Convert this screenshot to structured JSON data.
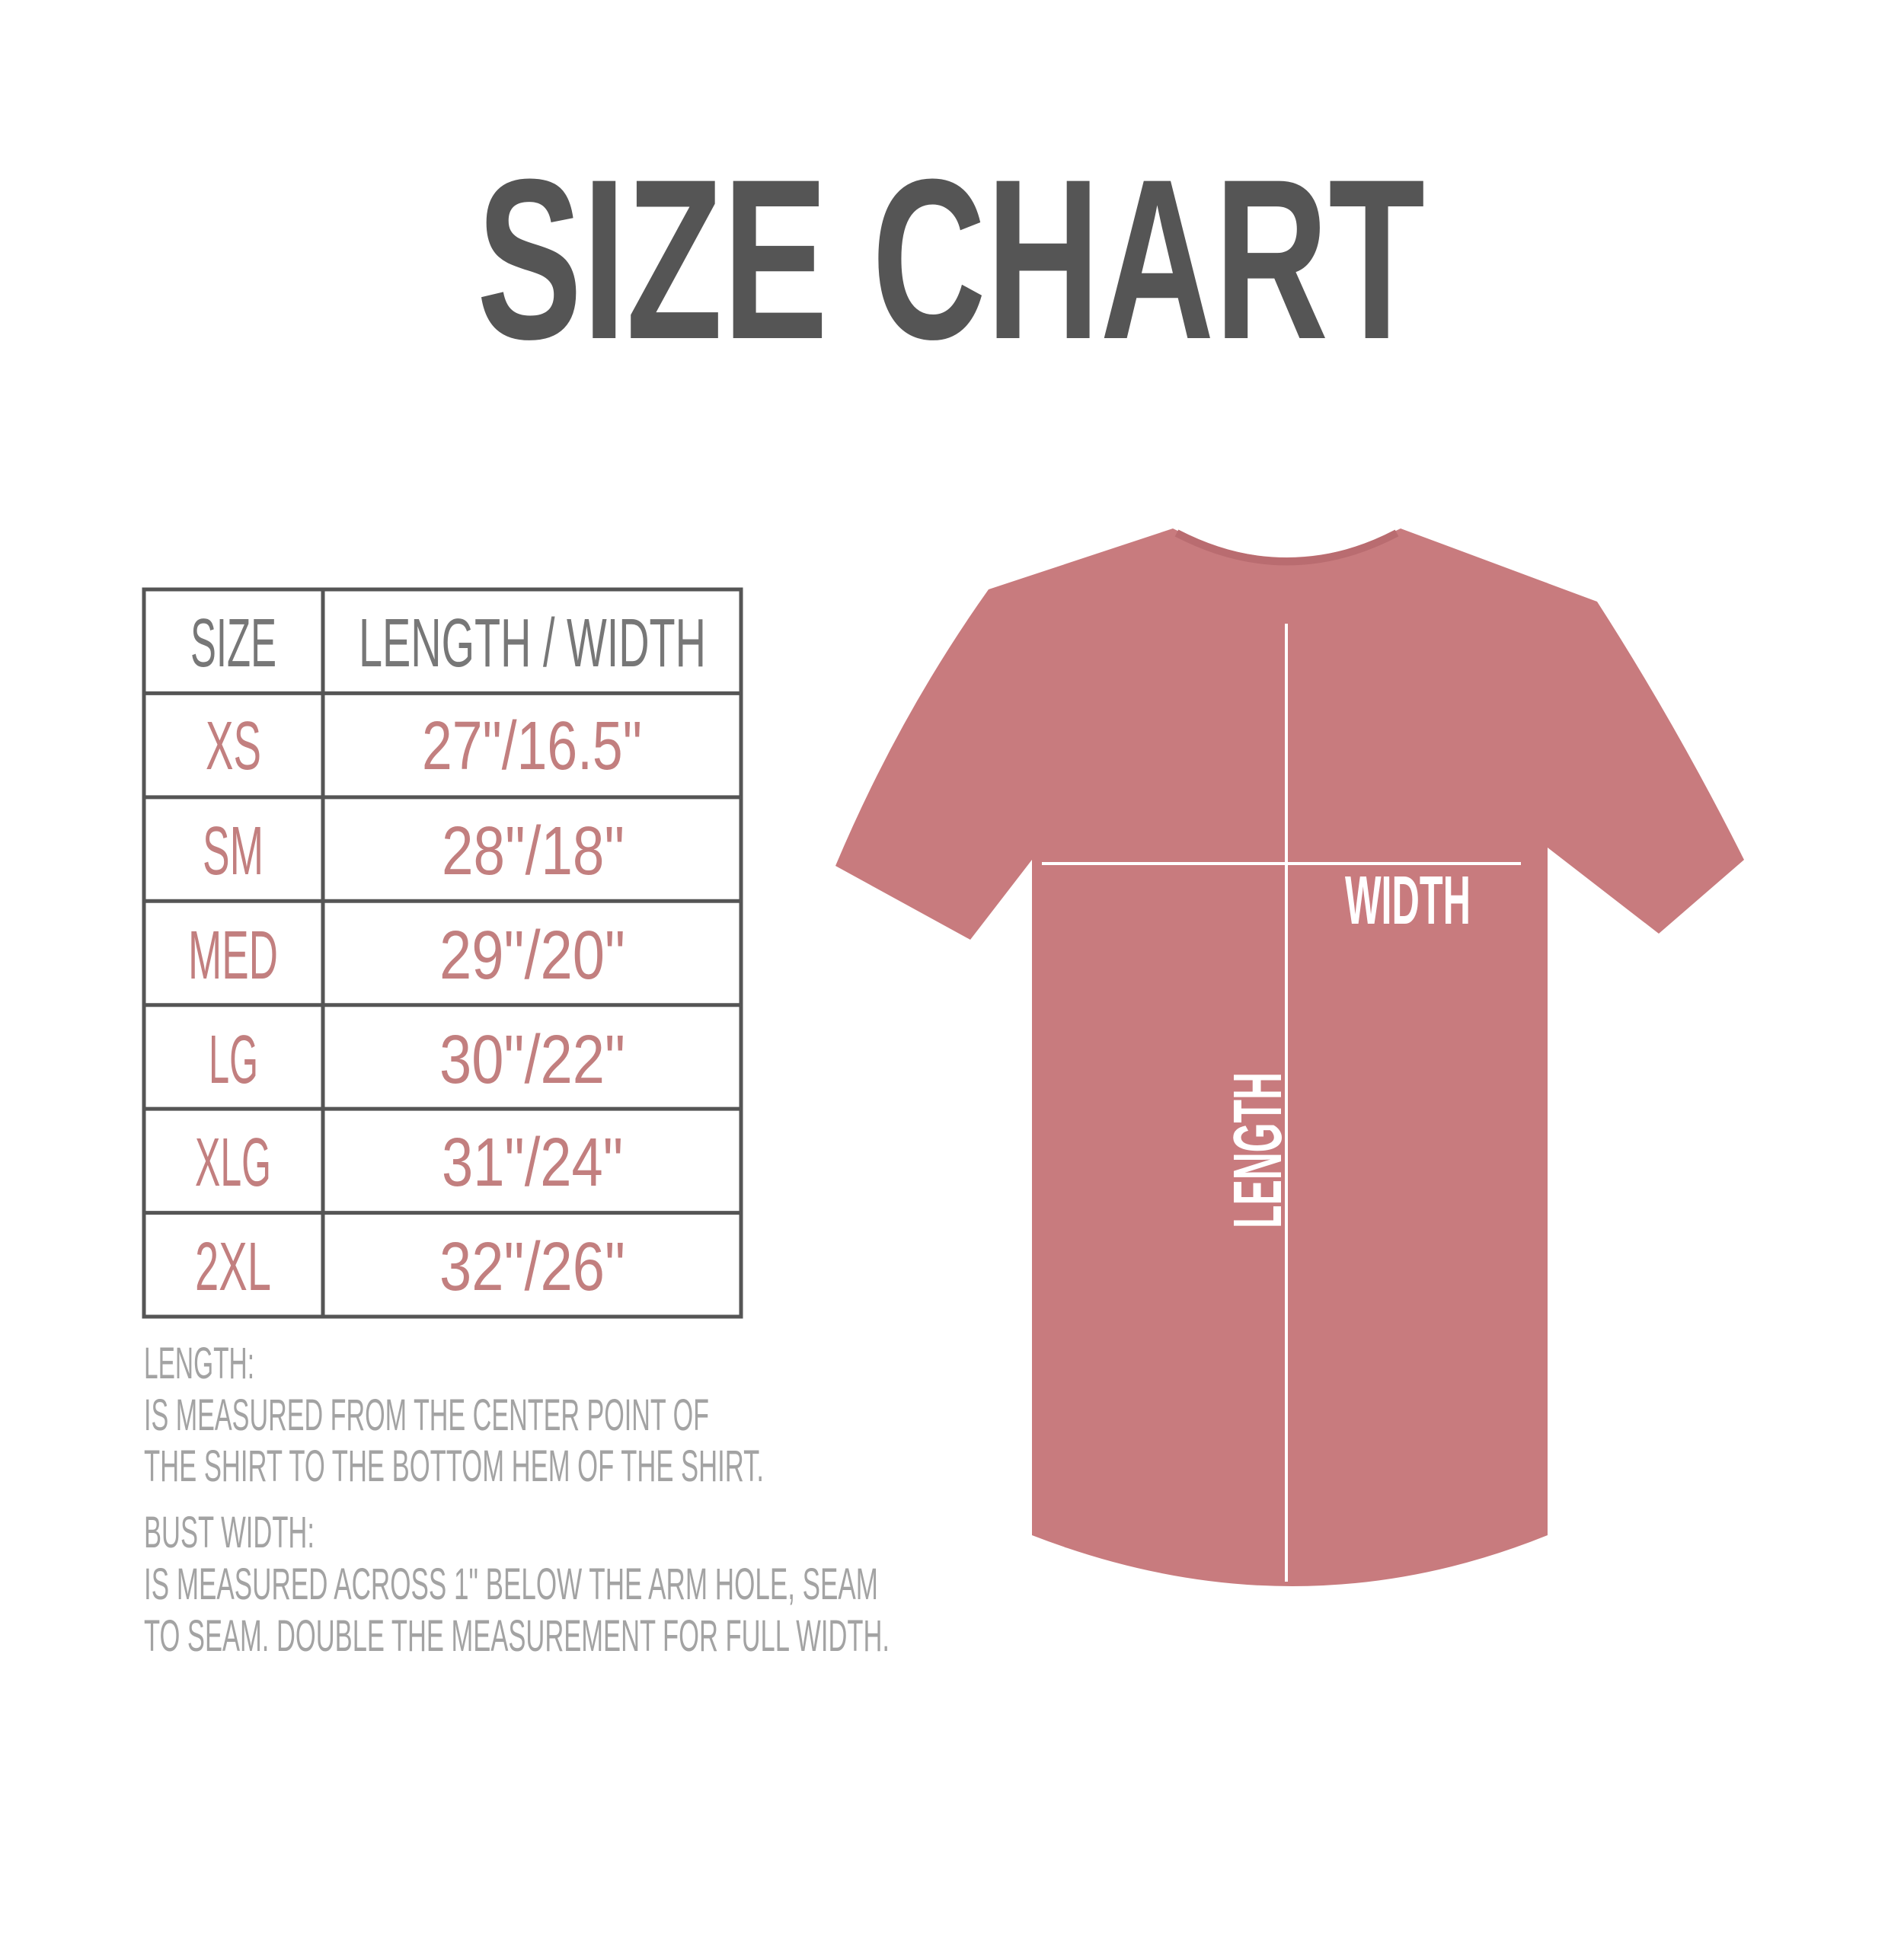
{
  "title": "SIZE CHART",
  "colors": {
    "title": "#555555",
    "table_border": "#555555",
    "header_text": "#777777",
    "value_text": "#c27f7f",
    "note_text": "#a3a3a3",
    "shirt": "#c87b7e"
  },
  "table": {
    "headers": [
      "SIZE",
      "LENGTH / WIDTH"
    ],
    "rows": [
      {
        "size": "XS",
        "measure": "27\"/16.5\""
      },
      {
        "size": "SM",
        "measure": "28\"/18\""
      },
      {
        "size": "MED",
        "measure": "29\"/20\""
      },
      {
        "size": "LG",
        "measure": "30\"/22\""
      },
      {
        "size": "XLG",
        "measure": "31\"/24\""
      },
      {
        "size": "2XL",
        "measure": "32\"/26\""
      }
    ]
  },
  "notes": {
    "length_heading": "LENGTH:",
    "length_lines": [
      "IS MEASURED FROM THE CENTER POINT OF",
      "THE SHIRT TO THE BOTTOM HEM OF THE SHIRT."
    ],
    "width_heading": "BUST WIDTH:",
    "width_lines": [
      "IS MEASURED ACROSS  1\" BELOW THE ARM HOLE, SEAM",
      "TO SEAM. DOUBLE THE MEASUREMENT FOR FULL WIDTH."
    ]
  },
  "diagram": {
    "width_label": "WIDTH",
    "length_label": "LENGTH"
  }
}
